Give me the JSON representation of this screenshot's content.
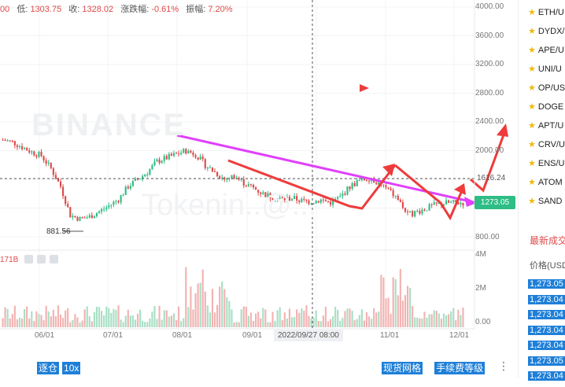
{
  "ohlc_bar": {
    "open_fragment": "00",
    "low_label": "低:",
    "low_value": "1303.75",
    "close_label": "收:",
    "close_value": "1328.02",
    "change_label": "涨跌幅:",
    "change_value": "-0.61%",
    "amplitude_label": "振幅:",
    "amplitude_value": "7.20%"
  },
  "y_axis": [
    "4000.00",
    "3600.00",
    "3200.00",
    "2800.00",
    "2400.00",
    "2000.00",
    "1600.00",
    "1200.00",
    "800.00"
  ],
  "vol_axis": [
    "4M",
    "2M",
    "0.00"
  ],
  "x_axis": [
    "06/01",
    "07/01",
    "08/01",
    "09/01",
    "11/01",
    "12/01"
  ],
  "crosshair": {
    "date": "2022/09/27 08:00",
    "price": "1616.24"
  },
  "current_price": "1273.05",
  "low_marker": "881.56",
  "volume_label": "171B",
  "watermark": {
    "brand": "BINANCE",
    "text": "Tokenin..@..."
  },
  "bottom_left": {
    "mode": "逐仓",
    "leverage": "10x"
  },
  "bottom_right": {
    "grid": "现货网格",
    "fee": "手续费等级"
  },
  "pairs": [
    "ETH/U",
    "DYDX/",
    "APE/U",
    "UNI/U",
    "OP/US",
    "DOGE",
    "APT/U",
    "CRV/U",
    "ENS/U",
    "ATOM",
    "SAND"
  ],
  "trades_panel": {
    "title": "最新成交",
    "header": "价格(USD"
  },
  "trades": [
    "1,273.05",
    "1,273.04",
    "1,273.04",
    "1,273.04",
    "1,273.04",
    "1,273.05",
    "1,273.04"
  ],
  "colors": {
    "up": "#2ebd85",
    "down": "#e04a4a",
    "overlay_arrow": "#ee3b3b",
    "trend_line": "#e040fb",
    "highlight": "#1e7fd8"
  },
  "chart_data": {
    "type": "candlestick",
    "ylim": [
      800,
      4000
    ],
    "x_ticks": [
      "06/01",
      "07/01",
      "08/01",
      "09/01",
      "11/01",
      "12/01"
    ],
    "closes": [
      2150,
      2120,
      2050,
      1980,
      1930,
      1750,
      1500,
      1100,
      1050,
      1080,
      1150,
      1230,
      1320,
      1500,
      1600,
      1700,
      1850,
      1900,
      1950,
      2000,
      1950,
      1800,
      1700,
      1600,
      1650,
      1550,
      1480,
      1400,
      1350,
      1320,
      1340,
      1300,
      1290,
      1310,
      1280,
      1350,
      1500,
      1580,
      1620,
      1550,
      1450,
      1320,
      1100,
      1150,
      1200,
      1250,
      1270,
      1273
    ]
  }
}
